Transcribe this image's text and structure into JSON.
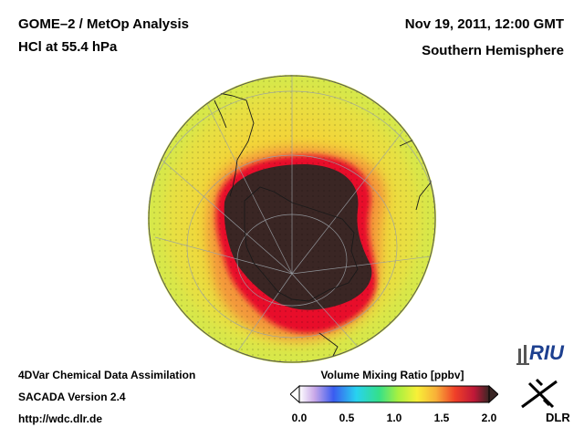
{
  "header": {
    "title_line1": "GOME–2 / MetOp Analysis",
    "title_line2": "HCl at 55.4 hPa",
    "date_line": "Nov 19, 2011, 12:00 GMT",
    "region": "Southern Hemisphere"
  },
  "footer": {
    "line1": "4DVar Chemical Data Assimilation",
    "line2": "SACADA Version 2.4",
    "line3": "http://wdc.dlr.de"
  },
  "colorbar": {
    "title": "Volume Mixing Ratio [ppbv]",
    "min": 0.0,
    "max": 2.0,
    "ticks": [
      "0.0",
      "0.5",
      "1.0",
      "1.5",
      "2.0"
    ],
    "tick_values": [
      0.0,
      0.5,
      1.0,
      1.5,
      2.0
    ]
  },
  "logos": {
    "riu": "RIU",
    "dlr": "DLR"
  },
  "colors": {
    "vortex_core": "#3a2624",
    "vortex_edge": "#e8102c",
    "orange": "#f58a3a",
    "yellow": "#f2e83a",
    "yellow_green": "#d8e84a"
  }
}
